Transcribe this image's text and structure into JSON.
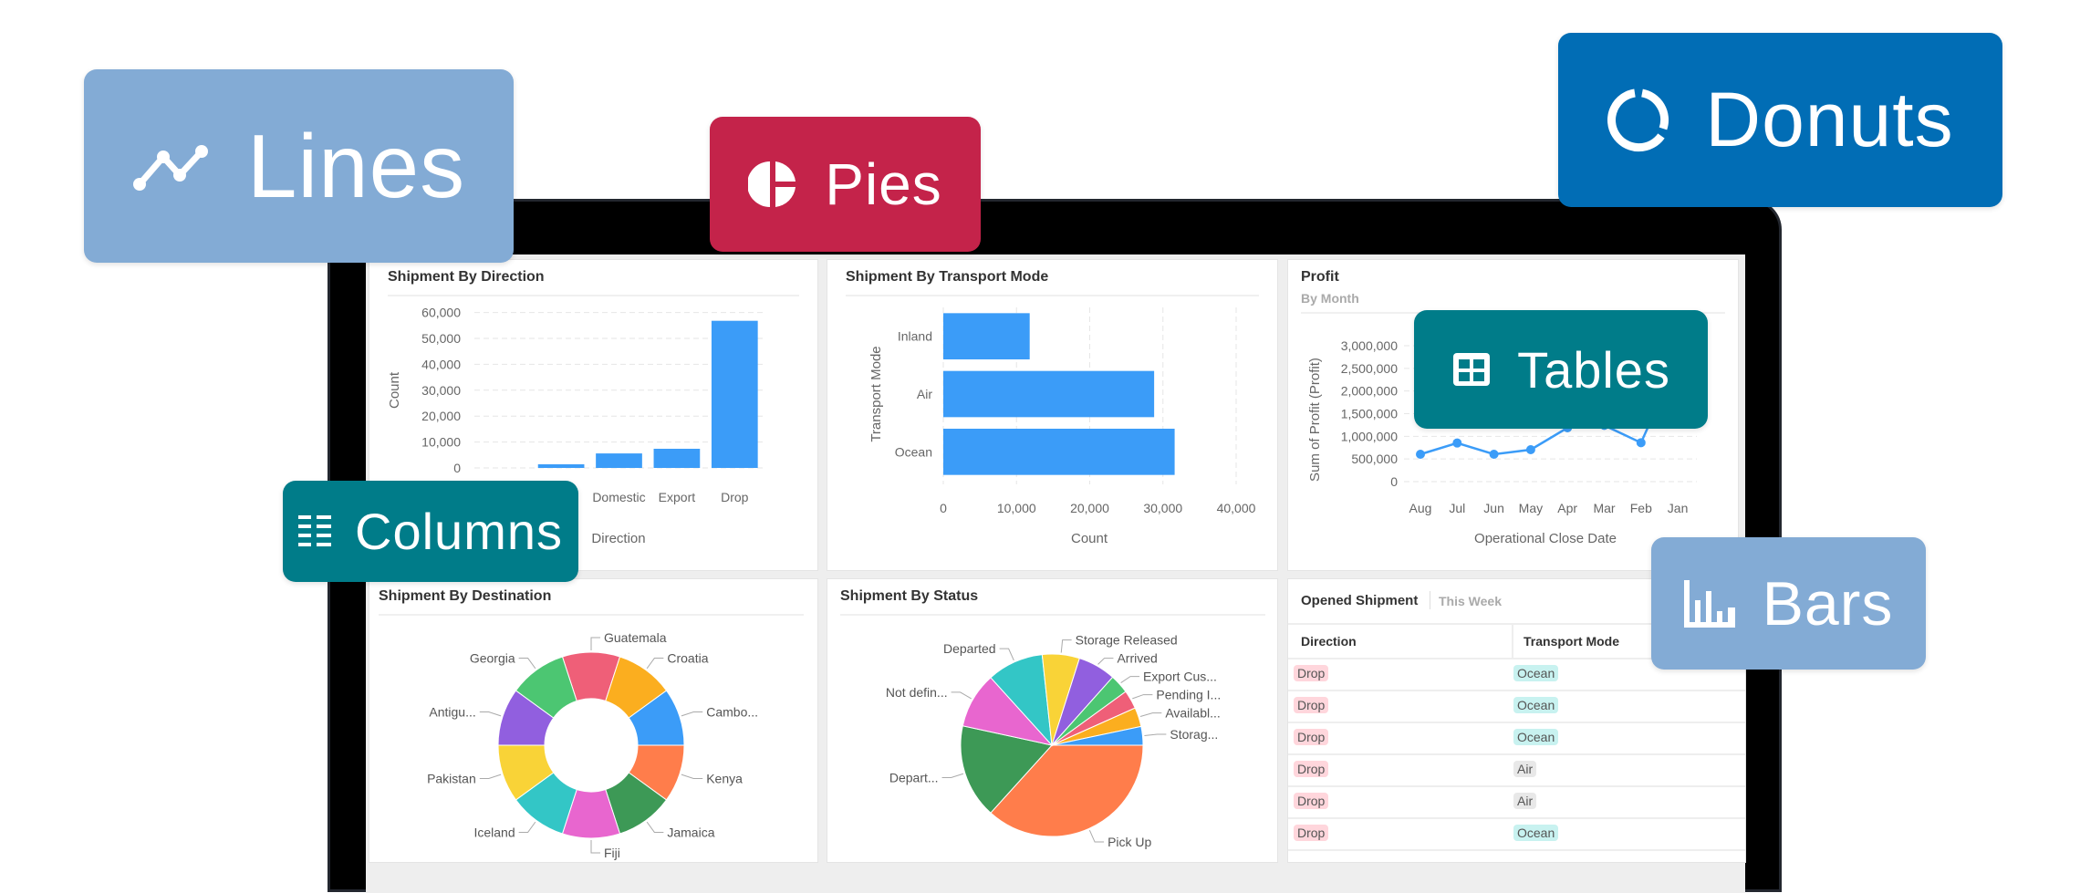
{
  "badges": {
    "lines": {
      "label": "Lines",
      "icon": "line-chart-icon",
      "color": "#83abd5"
    },
    "pies": {
      "label": "Pies",
      "icon": "pie-chart-icon",
      "color": "#c4234a"
    },
    "donuts": {
      "label": "Donuts",
      "icon": "donut-chart-icon",
      "color": "#016db5"
    },
    "tables": {
      "label": "Tables",
      "icon": "table-icon",
      "color": "#007c89"
    },
    "columns": {
      "label": "Columns",
      "icon": "columns-icon",
      "color": "#007c89"
    },
    "bars": {
      "label": "Bars",
      "icon": "bar-chart-icon",
      "color": "#83abd5"
    }
  },
  "chart_data": [
    {
      "type": "bar",
      "title": "Shipment By Direction",
      "categories": [
        "",
        "",
        "Domestic",
        "Export",
        "Drop"
      ],
      "values": [
        0,
        1400,
        5600,
        7400,
        56800
      ],
      "xlabel": "Direction",
      "ylabel": "Count",
      "ylim": [
        0,
        60000
      ],
      "yticks": [
        "0",
        "10,000",
        "20,000",
        "30,000",
        "40,000",
        "50,000",
        "60,000"
      ],
      "grid": true,
      "color": "#3b9cf8"
    },
    {
      "type": "bar",
      "orientation": "horizontal",
      "title": "Shipment By Transport Mode",
      "categories": [
        "Inland",
        "Air",
        "Ocean"
      ],
      "values": [
        11800,
        28800,
        31600
      ],
      "xlabel": "Count",
      "ylabel": "Transport Mode",
      "xlim": [
        0,
        40000
      ],
      "xticks": [
        "0",
        "10,000",
        "20,000",
        "30,000",
        "40,000"
      ],
      "grid": true,
      "color": "#3b9cf8"
    },
    {
      "type": "line",
      "title": "Profit",
      "subtitle": "By Month",
      "categories": [
        "Aug",
        "Jul",
        "Jun",
        "May",
        "Apr",
        "Mar",
        "Feb",
        "Jan"
      ],
      "values": [
        604000,
        852000,
        604000,
        705000,
        1188000,
        1242000,
        859000,
        2671000
      ],
      "xlabel": "Operational Close Date",
      "ylabel": "Sum of Profit (Profit)",
      "ylim": [
        0,
        3000000
      ],
      "yticks": [
        "0",
        "500,000",
        "1,000,000",
        "1,500,000",
        "2,000,000",
        "2,500,000",
        "3,000,000"
      ],
      "grid": true,
      "color": "#3b9cf8"
    },
    {
      "type": "pie",
      "variant": "donut",
      "title": "Shipment By Destination",
      "labels": [
        "Guatemala",
        "Croatia",
        "Cambo...",
        "Kenya",
        "Jamaica",
        "Fiji",
        "Iceland",
        "Pakistan",
        "Antigu...",
        "Georgia"
      ],
      "values": [
        10,
        10,
        10,
        10,
        10,
        10,
        10,
        10,
        10,
        10
      ],
      "colors": [
        "#ef5f78",
        "#fbae1f",
        "#3b9cf8",
        "#ff7d4b",
        "#3d9956",
        "#e866cf",
        "#33c6c6",
        "#f9d337",
        "#915fdf",
        "#4cc672"
      ]
    },
    {
      "type": "pie",
      "title": "Shipment By Status",
      "labels": [
        "Pick Up",
        "Depart...",
        "Not defin...",
        "Departed",
        "Storage Released",
        "Arrived",
        "Export Cus...",
        "Pending I...",
        "Availabl...",
        "Storag..."
      ],
      "values": [
        36.7,
        16.7,
        9.9,
        10.0,
        6.6,
        6.7,
        3.4,
        3.3,
        3.4,
        3.3
      ],
      "colors": [
        "#ff7d4b",
        "#3d9956",
        "#e866cf",
        "#33c6c6",
        "#f9d337",
        "#915fdf",
        "#4cc672",
        "#ef5f78",
        "#fbae1f",
        "#3b9cf8"
      ]
    }
  ],
  "table": {
    "title": "Opened Shipment",
    "period": "This Week",
    "columns": [
      "Direction",
      "Transport Mode"
    ],
    "rows": [
      [
        "Drop",
        "Ocean"
      ],
      [
        "Drop",
        "Ocean"
      ],
      [
        "Drop",
        "Ocean"
      ],
      [
        "Drop",
        "Air"
      ],
      [
        "Drop",
        "Air"
      ],
      [
        "Drop",
        "Ocean"
      ]
    ],
    "pill_colors": {
      "Drop": "#ffd6dc",
      "Ocean": "#c8f2f0",
      "Air": "#e8e8e8"
    }
  }
}
